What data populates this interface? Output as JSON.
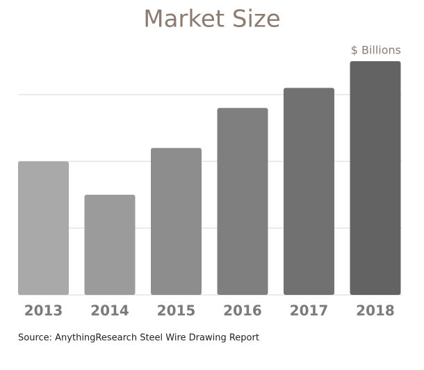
{
  "chart_data": {
    "type": "bar",
    "title": "Market Size",
    "unit_label": "$ Billions",
    "categories": [
      "2013",
      "2014",
      "2015",
      "2016",
      "2017",
      "2018"
    ],
    "values": [
      2.0,
      1.5,
      2.2,
      2.8,
      3.1,
      3.5
    ],
    "colors": [
      "#a9a9a9",
      "#9b9b9b",
      "#8d8d8d",
      "#7f7f7f",
      "#717171",
      "#636363"
    ],
    "ylim": [
      0,
      3.5
    ],
    "yticks": [
      0,
      1,
      2,
      3
    ],
    "grid": true,
    "source": "Source: AnythingResearch Steel Wire Drawing Report"
  }
}
